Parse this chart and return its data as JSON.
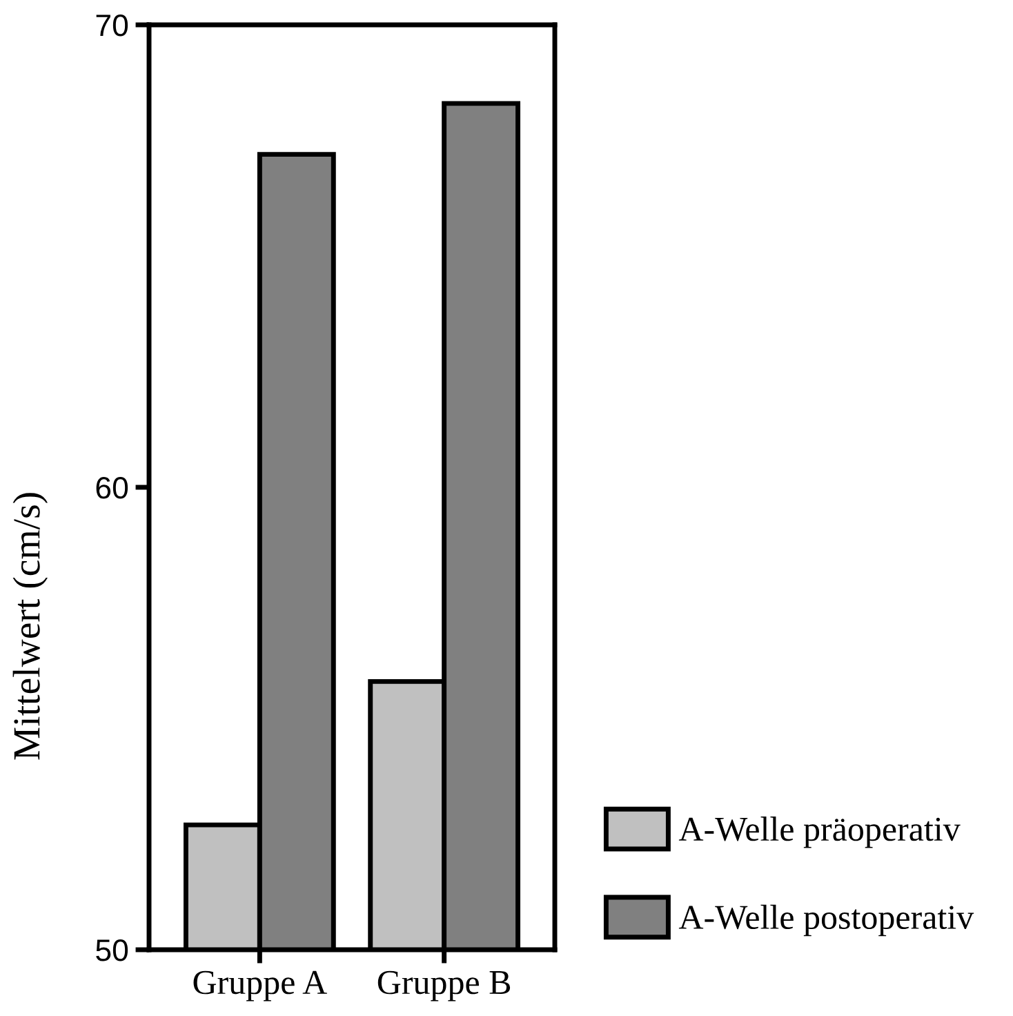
{
  "chart_data": {
    "type": "bar",
    "ylabel": "Mittelwert (cm/s)",
    "categories": [
      "Gruppe A",
      "Gruppe B"
    ],
    "series": [
      {
        "name": "A-Welle präoperativ",
        "color": "#c0c0c0",
        "values": [
          52.7,
          55.8
        ]
      },
      {
        "name": "A-Welle postoperativ",
        "color": "#808080",
        "values": [
          67.2,
          68.3
        ]
      }
    ],
    "ylim": [
      50,
      70
    ],
    "yticks": [
      50,
      60,
      70
    ],
    "grid": false,
    "legend": "bottom right"
  }
}
